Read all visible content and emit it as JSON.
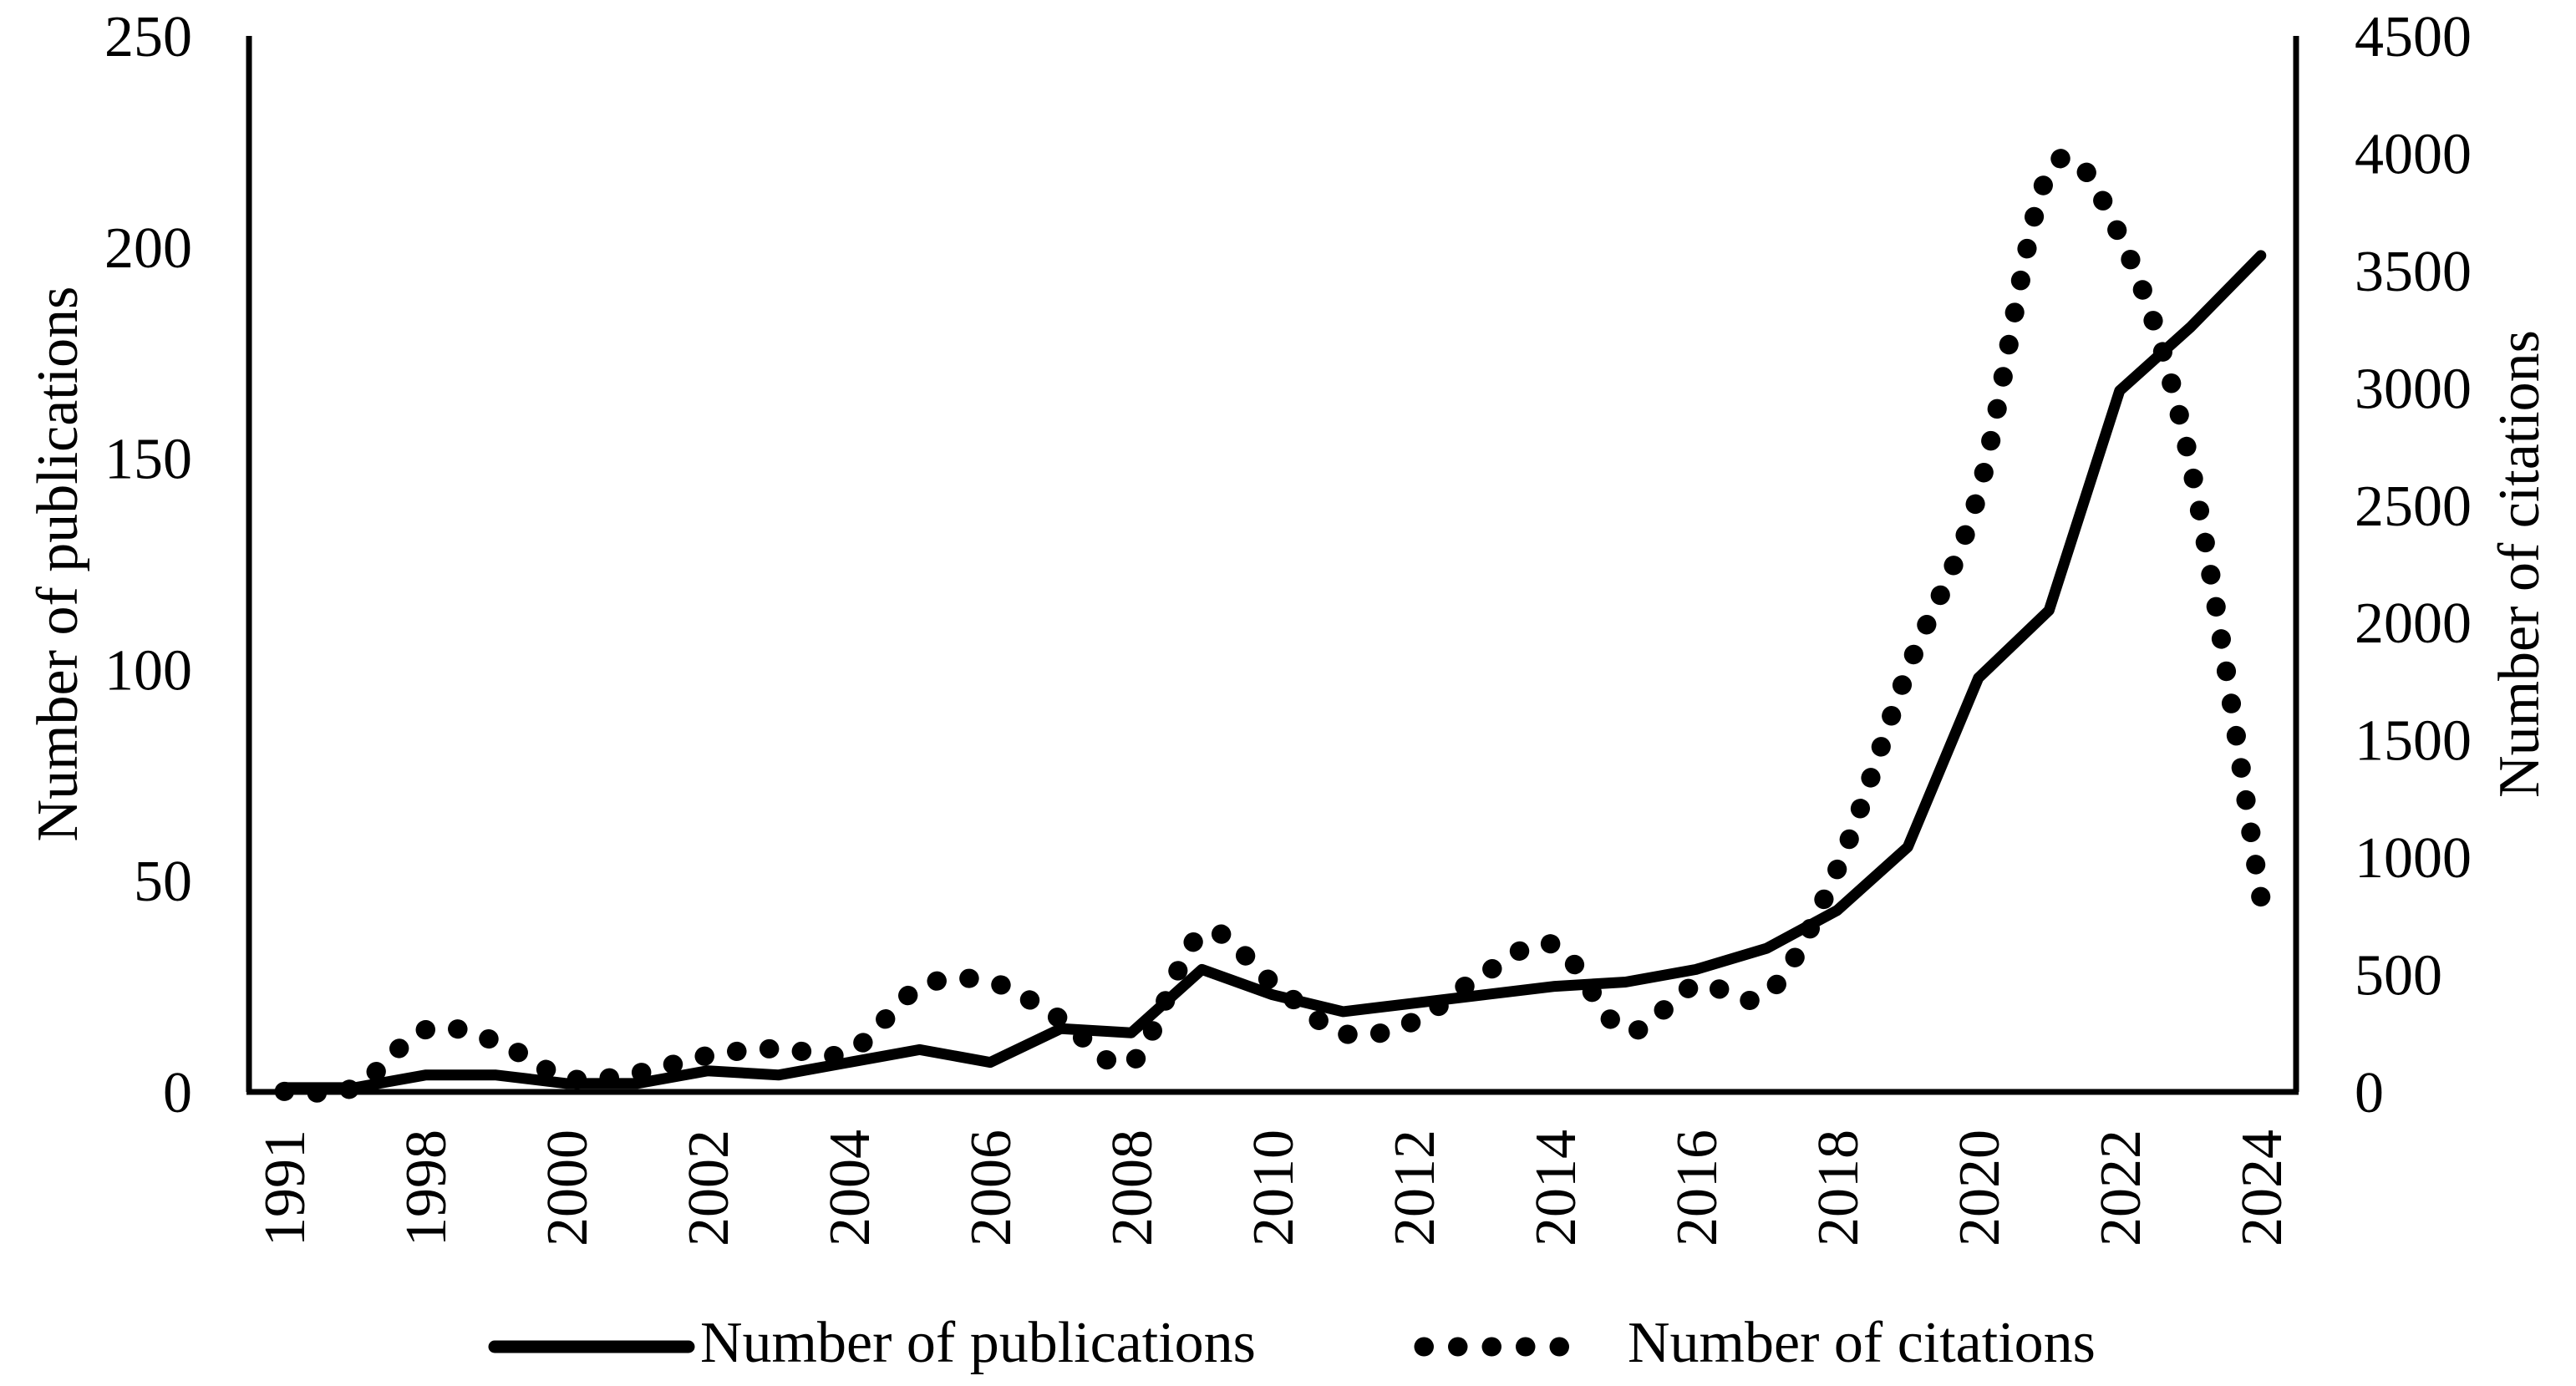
{
  "figure": {
    "background_color": "#ffffff",
    "ink_color": "#000000"
  },
  "axes": {
    "left_title": "Number of publications",
    "right_title": "Number of citations",
    "left_ticks": [
      "0",
      "50",
      "100",
      "150",
      "200",
      "250"
    ],
    "right_ticks": [
      "0",
      "500",
      "1000",
      "1500",
      "2000",
      "2500",
      "3000",
      "3500",
      "4000",
      "4500"
    ]
  },
  "legend": {
    "publications_label": "Number of publications",
    "citations_label": "Number of citations"
  },
  "chart_data": {
    "type": "line",
    "title": "",
    "xlabel": "",
    "x_labels": [
      "1991",
      "",
      "1998",
      "",
      "2000",
      "",
      "2002",
      "",
      "2004",
      "",
      "2006",
      "",
      "2008",
      "",
      "2010",
      "",
      "2012",
      "",
      "2014",
      "",
      "2016",
      "",
      "2018",
      "",
      "2020",
      "",
      "2022",
      "",
      "2024"
    ],
    "left_axis": {
      "label": "Number of publications",
      "range": [
        0,
        250
      ],
      "tick_step": 50
    },
    "right_axis": {
      "label": "Number of citations",
      "range": [
        0,
        4500
      ],
      "tick_step": 500
    },
    "grid": false,
    "legend_position": "bottom",
    "series": [
      {
        "name": "Number of publications",
        "axis": "left",
        "style": "solid",
        "values": [
          1,
          1,
          4,
          4,
          2,
          2,
          5,
          4,
          7,
          10,
          7,
          15,
          14,
          29,
          23,
          19,
          21,
          23,
          25,
          26,
          29,
          34,
          43,
          58,
          98,
          114,
          166,
          181,
          198
        ]
      },
      {
        "name": "Number of citations",
        "axis": "right",
        "style": "dotted-smooth",
        "values": [
          2,
          20,
          265,
          215,
          60,
          80,
          155,
          185,
          170,
          445,
          470,
          310,
          125,
          675,
          465,
          250,
          300,
          505,
          625,
          260,
          455,
          415,
          950,
          1800,
          2550,
          3920,
          3650,
          2680,
          830
        ]
      }
    ]
  }
}
